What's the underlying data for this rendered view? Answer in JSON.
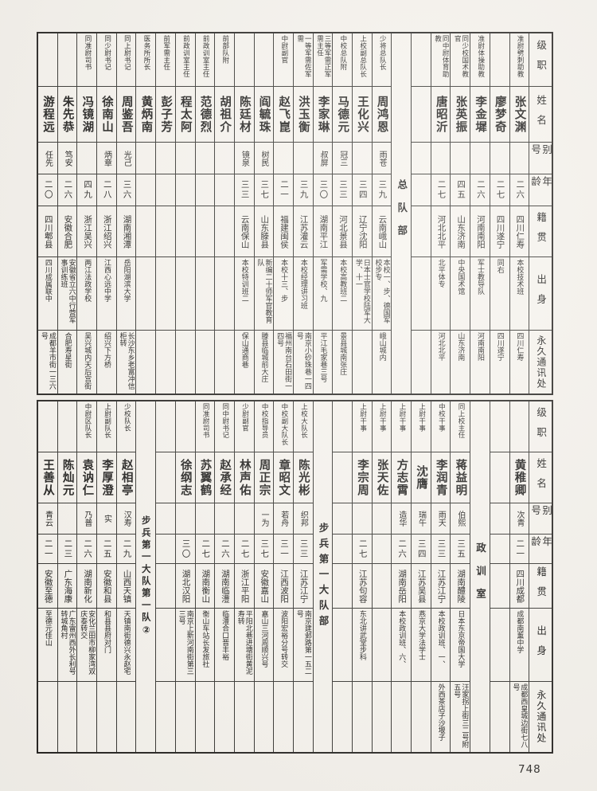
{
  "page": {
    "number": "748"
  },
  "row_labels": [
    "级职",
    "姓名",
    "别号",
    "年龄",
    "籍贯",
    "出身",
    "永久通讯处"
  ],
  "tables": {
    "top": {
      "columns": [
        {
          "kind": "person",
          "position": "",
          "name": "游程远",
          "alias": "任先",
          "age": "二〇",
          "native": "四川郫县",
          "origin": "四川成属联中",
          "address": "成都羊市街一三六号"
        },
        {
          "kind": "person",
          "position": "",
          "name": "朱先恭",
          "alias": "笃安",
          "age": "二六",
          "native": "安徽合肥",
          "origin": "安徽省立六中行营军事训练班",
          "address": "合肥寿星街"
        },
        {
          "kind": "person",
          "position": "同准尉司书",
          "name": "冯镜湖",
          "alias": "",
          "age": "四九",
          "native": "浙江吴兴",
          "origin": "两江法政学校",
          "address": "吴兴城内天后宫街"
        },
        {
          "kind": "person",
          "position": "同少尉书记",
          "name": "徐南山",
          "alias": "炳章",
          "age": "二八",
          "native": "浙江绍兴",
          "origin": "江西心远中学",
          "address": "绍兴下方桥"
        },
        {
          "kind": "person",
          "position": "同上尉书记",
          "name": "周鉴吾",
          "alias": "光己",
          "age": "三六",
          "native": "湖南湘潭",
          "origin": "岳阳湖滨大学",
          "address": "长沙东乡老富冲信柜转"
        },
        {
          "kind": "person",
          "position": "医务所所长",
          "name": "黄炳南",
          "alias": "",
          "age": "",
          "native": "",
          "origin": "",
          "address": ""
        },
        {
          "kind": "person",
          "position": "前军需主任",
          "name": "彭子芳",
          "alias": "",
          "age": "",
          "native": "",
          "origin": "",
          "address": ""
        },
        {
          "kind": "person",
          "position": "前政训室主任",
          "name": "程太阿",
          "alias": "",
          "age": "",
          "native": "",
          "origin": "",
          "address": ""
        },
        {
          "kind": "person",
          "position": "前政训室主任",
          "name": "范德烈",
          "alias": "",
          "age": "",
          "native": "",
          "origin": "",
          "address": ""
        },
        {
          "kind": "person",
          "position": "前部队附",
          "name": "胡祖介",
          "alias": "",
          "age": "",
          "native": "",
          "origin": "",
          "address": ""
        },
        {
          "kind": "person",
          "position": "",
          "name": "陈廷材",
          "alias": "镜泉",
          "age": "三三",
          "native": "云南保山",
          "origin": "本校特训班二",
          "address": "保山通商巷"
        },
        {
          "kind": "person",
          "position": "",
          "name": "阎毓珠",
          "alias": "树民",
          "age": "三七",
          "native": "山东滕县",
          "origin": "新编二十师军官教育队",
          "address": "滕县临城前大庄"
        },
        {
          "kind": "person",
          "position": "中尉副官",
          "name": "赵飞崑",
          "alias": "",
          "age": "二一",
          "native": "福建闽侯",
          "origin": "本校十三、步",
          "address": "福州南台石田街一四号"
        },
        {
          "kind": "person",
          "position": "一等军需佐军需",
          "name": "洪玉衡",
          "alias": "",
          "age": "三九",
          "native": "江苏灌云",
          "origin": "本校经理讲习班",
          "address": "南京小砂珠巷一四号"
        },
        {
          "kind": "person",
          "position": "三等军需正军需主任",
          "name": "李家琳",
          "alias": "叔屏",
          "age": "三〇",
          "native": "湖南平江",
          "origin": "军需学校、九",
          "address": "平江毛家巷三号"
        },
        {
          "kind": "person",
          "position": "中校总队附",
          "name": "马德元",
          "alias": "冠三",
          "age": "三三",
          "native": "河北景县",
          "origin": "本校高教班二",
          "address": "景县城南张庄"
        },
        {
          "kind": "person",
          "position": "上校副总队长",
          "name": "王化兴",
          "alias": "",
          "age": "三四",
          "native": "辽宁沈阳",
          "origin": "日本士官学校陆军大学、十一",
          "address": ""
        },
        {
          "kind": "person",
          "position": "少将总队长",
          "name": "周鸿恩",
          "alias": "雨苍",
          "age": "三九",
          "native": "云南峨山",
          "origin": "本校一、步、德国军校步专",
          "address": "峨山城内"
        },
        {
          "kind": "group",
          "label": "总队部",
          "spacing": "sp-wide"
        },
        {
          "kind": "blank"
        },
        {
          "kind": "person",
          "position": "同中尉体育助教",
          "name": "唐昭沂",
          "alias": "",
          "age": "二七",
          "native": "河北北平",
          "origin": "北平体专",
          "address": "河北北平"
        },
        {
          "kind": "person",
          "position": "同少校国术教官",
          "name": "张英振",
          "alias": "",
          "age": "四五",
          "native": "山东济南",
          "origin": "中央国术馆",
          "address": "山东济南"
        },
        {
          "kind": "person",
          "position": "准尉体操助教",
          "name": "李金墀",
          "alias": "",
          "age": "二六",
          "native": "河南南阳",
          "origin": "军士教导队",
          "address": "河南南阳"
        },
        {
          "kind": "person",
          "position": "",
          "name": "廖梦奇",
          "alias": "",
          "age": "二七",
          "native": "四川遂宁",
          "origin": "同右",
          "address": "四川遂宁"
        },
        {
          "kind": "person",
          "position": "准尉劈刺助教",
          "name": "张文渊",
          "alias": "",
          "age": "二六",
          "native": "四川仁寿",
          "origin": "本校技术班",
          "address": "四川仁寿"
        },
        {
          "kind": "labels"
        }
      ]
    },
    "bottom": {
      "columns": [
        {
          "kind": "person",
          "position": "",
          "name": "王善从",
          "alias": "青云",
          "age": "二一",
          "native": "安徽至德",
          "origin": "至德元佳山",
          "address": ""
        },
        {
          "kind": "person",
          "position": "",
          "name": "陈灿元",
          "alias": "",
          "age": "二三",
          "native": "广东海康",
          "origin": "广东雷州西外长利号转城角村",
          "address": ""
        },
        {
          "kind": "person",
          "position": "中尉区队长",
          "name": "袁讷仁",
          "alias": "乃普",
          "age": "二六",
          "native": "湖南新化",
          "origin": "安化兰田市柳家湾双庆泰转交",
          "address": ""
        },
        {
          "kind": "person",
          "position": "上尉副队长",
          "name": "李厚澄",
          "alias": "实",
          "age": "二五",
          "native": "安徽和县",
          "origin": "和县县府对门",
          "address": ""
        },
        {
          "kind": "person",
          "position": "少校队长",
          "name": "赵相亭",
          "alias": "汉寿",
          "age": "二九",
          "native": "山西天镇",
          "origin": "天镇南街德兴永赵宅",
          "address": ""
        },
        {
          "kind": "group",
          "label": "步兵第一大队第一队②",
          "spacing": "sp-tight"
        },
        {
          "kind": "blank"
        },
        {
          "kind": "person",
          "position": "",
          "name": "徐纲志",
          "alias": "",
          "age": "三〇",
          "native": "湖北汉阳",
          "origin": "南京上新河南街第三三号",
          "address": ""
        },
        {
          "kind": "person",
          "position": "同准尉司书",
          "name": "苏翼鹤",
          "alias": "",
          "age": "二七",
          "native": "湖南衡山",
          "origin": "衡山车站长发旅社",
          "address": ""
        },
        {
          "kind": "person",
          "position": "同中尉书记",
          "name": "赵承经",
          "alias": "",
          "age": "二六",
          "native": "湖南临澧",
          "origin": "临澧合口晋丰裕",
          "address": ""
        },
        {
          "kind": "person",
          "position": "少尉副官",
          "name": "林声佑",
          "alias": "",
          "age": "二七",
          "native": "浙江平阳",
          "origin": "平阳北巷进塘街黄泥寿转",
          "address": ""
        },
        {
          "kind": "person",
          "position": "中校指导员",
          "name": "周正宗",
          "alias": "一为",
          "age": "三七",
          "native": "安徽嘉山",
          "origin": "嘉山三河周顺兴号",
          "address": ""
        },
        {
          "kind": "person",
          "position": "中校副大队长",
          "name": "章昭文",
          "alias": "若舟",
          "age": "三一",
          "native": "江西波阳",
          "origin": "波阳宏裕分号转交",
          "address": ""
        },
        {
          "kind": "person",
          "position": "上校大队长",
          "name": "陈光彬",
          "alias": "织邦",
          "age": "三三",
          "native": "江苏江宁",
          "origin": "南京建邺路第一五二号",
          "address": ""
        },
        {
          "kind": "group",
          "label": "步兵第一大队部",
          "spacing": "sp-mid"
        },
        {
          "kind": "blank"
        },
        {
          "kind": "person",
          "position": "上尉干事",
          "name": "李宗周",
          "alias": "",
          "age": "二七",
          "native": "江苏句容",
          "origin": "东北讲武堂步科",
          "address": ""
        },
        {
          "kind": "person",
          "position": "上尉干事",
          "name": "张天佐",
          "alias": "",
          "age": "",
          "native": "",
          "origin": "",
          "address": ""
        },
        {
          "kind": "person",
          "position": "上尉干事",
          "name": "方志霄",
          "alias": "造华",
          "age": "二六",
          "native": "湖南岳阳",
          "origin": "本校政训班、六、",
          "address": ""
        },
        {
          "kind": "person",
          "position": "上尉干事",
          "name": "沈膺",
          "alias": "瑞午",
          "age": "三四",
          "native": "江苏吴县",
          "origin": "燕京大学法学士",
          "address": ""
        },
        {
          "kind": "person",
          "position": "中校干事",
          "name": "李润青",
          "alias": "雨天",
          "age": "三三",
          "native": "江苏江宁",
          "origin": "本校政训班、一、",
          "address": "外西茶店子沙堰子"
        },
        {
          "kind": "person",
          "position": "同上校主任",
          "name": "蒋益明",
          "alias": "伯熙",
          "age": "三五",
          "native": "湖南醴陵",
          "origin": "日本东京帝国大学",
          "address": "汪家拐上街三二号附五号"
        },
        {
          "kind": "group",
          "label": "政训室",
          "spacing": "sp-wide"
        },
        {
          "kind": "blank"
        },
        {
          "kind": "person",
          "position": "",
          "name": "黄稚卿",
          "alias": "次青",
          "age": "二一",
          "native": "四川成都",
          "origin": "成都南薰中学",
          "address": "成都西皇城边街七八号"
        },
        {
          "kind": "labels"
        }
      ]
    }
  }
}
